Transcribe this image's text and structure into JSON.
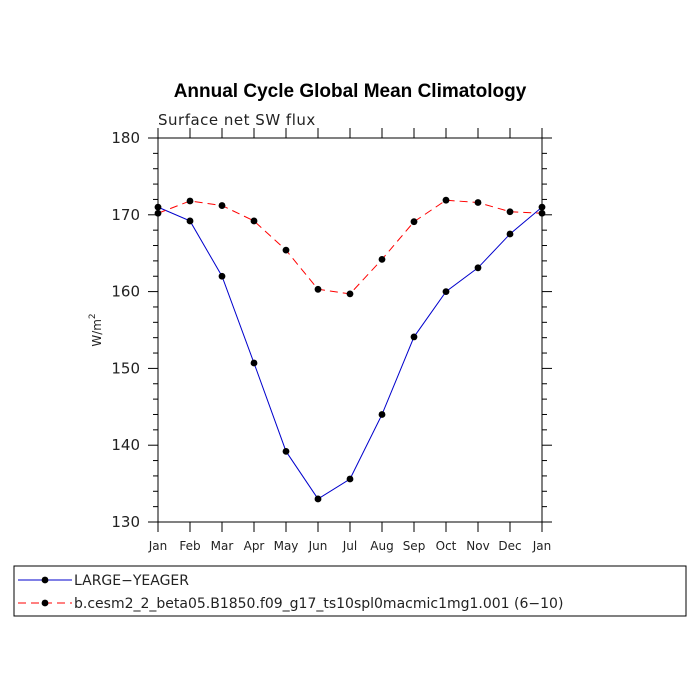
{
  "chart_data": {
    "type": "line",
    "title": "Annual Cycle Global Mean Climatology",
    "subtitle": "Surface net SW flux",
    "ylabel": "W/m",
    "ylabel_superscript": "2",
    "xlabel": "",
    "ylim": [
      130,
      180
    ],
    "yticks": [
      130,
      140,
      150,
      160,
      170,
      180
    ],
    "categories": [
      "Jan",
      "Feb",
      "Mar",
      "Apr",
      "May",
      "Jun",
      "Jul",
      "Aug",
      "Sep",
      "Oct",
      "Nov",
      "Dec",
      "Jan"
    ],
    "series": [
      {
        "name": "LARGE−YEAGER",
        "color": "#0000cc",
        "dash": "solid",
        "values": [
          171.0,
          169.2,
          162.0,
          150.7,
          139.2,
          133.0,
          135.6,
          144.0,
          154.1,
          160.0,
          163.1,
          167.5,
          171.0
        ]
      },
      {
        "name": "b.cesm2_2_beta05.B1850.f09_g17_ts10spl0macmic1mg1.001 (6−10)",
        "color": "#ff0000",
        "dash": "dashed",
        "values": [
          170.2,
          171.8,
          171.2,
          169.2,
          165.4,
          160.3,
          159.7,
          164.2,
          169.1,
          171.9,
          171.6,
          170.4,
          170.2
        ]
      }
    ]
  }
}
